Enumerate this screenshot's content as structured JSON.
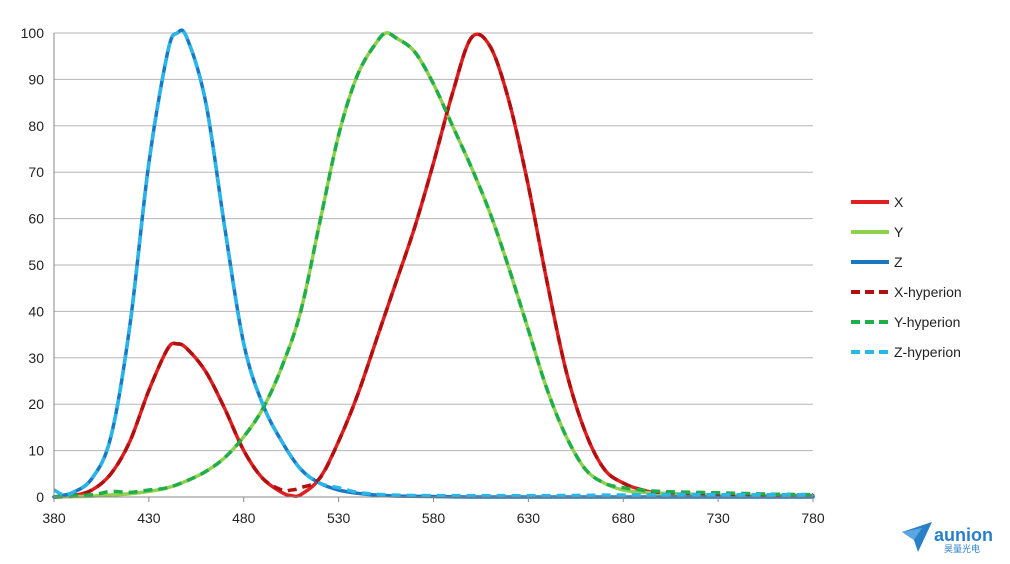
{
  "chart_data": {
    "type": "line",
    "xlim": [
      380,
      780
    ],
    "ylim": [
      0,
      100
    ],
    "x_ticks": [
      380,
      430,
      480,
      530,
      580,
      630,
      680,
      730,
      780
    ],
    "y_ticks": [
      0,
      10,
      20,
      30,
      40,
      50,
      60,
      70,
      80,
      90,
      100
    ],
    "grid": "horizontal",
    "legend_position": "right",
    "series": [
      {
        "name": "X",
        "style": "solid",
        "color": "#e02020",
        "x": [
          380,
          390,
          400,
          410,
          420,
          430,
          440,
          445,
          450,
          460,
          470,
          480,
          490,
          500,
          505,
          510,
          520,
          530,
          540,
          550,
          560,
          570,
          580,
          590,
          600,
          610,
          620,
          630,
          640,
          650,
          660,
          670,
          680,
          690,
          700,
          720,
          740,
          760,
          780
        ],
        "y": [
          0,
          0.3,
          1.5,
          5,
          12,
          23,
          32,
          33,
          32,
          27,
          19,
          10,
          4,
          1,
          0.3,
          0.5,
          4,
          12,
          22,
          34,
          46,
          58,
          72,
          87,
          99,
          97,
          85,
          67,
          46,
          27,
          14,
          6,
          3,
          1.5,
          0.8,
          0.5,
          0.3,
          0.3,
          0.3
        ]
      },
      {
        "name": "Y",
        "style": "solid",
        "color": "#8fd14f",
        "x": [
          380,
          400,
          420,
          430,
          440,
          450,
          460,
          470,
          480,
          490,
          500,
          510,
          520,
          530,
          540,
          550,
          555,
          560,
          570,
          580,
          590,
          600,
          610,
          620,
          630,
          640,
          650,
          660,
          670,
          680,
          690,
          700,
          720,
          740,
          760,
          780
        ],
        "y": [
          0,
          0.2,
          0.7,
          1.2,
          2,
          3.5,
          5.5,
          8.5,
          13,
          19,
          28,
          40,
          59,
          78,
          91,
          98,
          100,
          99,
          96,
          89,
          80,
          71,
          61,
          49,
          36,
          23,
          13,
          6,
          3,
          1.5,
          1,
          0.8,
          0.5,
          0.3,
          0.2,
          0.1
        ]
      },
      {
        "name": "Z",
        "style": "solid",
        "color": "#1a78c2",
        "x": [
          380,
          390,
          400,
          410,
          420,
          430,
          440,
          445,
          450,
          460,
          470,
          480,
          490,
          500,
          510,
          520,
          530,
          540,
          550,
          560,
          580,
          600,
          640,
          700,
          780
        ],
        "y": [
          0,
          1,
          4,
          13,
          37,
          72,
          96,
          100,
          99,
          85,
          58,
          33,
          20,
          12,
          6,
          3,
          1.5,
          0.8,
          0.4,
          0.2,
          0.1,
          0,
          0,
          0,
          0
        ]
      },
      {
        "name": "X-hyperion",
        "style": "dashed",
        "color": "#b01010",
        "x": [
          380,
          390,
          400,
          410,
          420,
          430,
          440,
          445,
          450,
          460,
          470,
          480,
          490,
          500,
          505,
          510,
          520,
          530,
          540,
          550,
          560,
          570,
          580,
          590,
          600,
          610,
          620,
          630,
          640,
          650,
          660,
          670,
          680,
          690,
          700,
          720,
          740,
          760,
          780
        ],
        "y": [
          0,
          0.3,
          1.5,
          5,
          12,
          23,
          32,
          33,
          32,
          27,
          19,
          10,
          4,
          1.5,
          1.5,
          2,
          4,
          12,
          22,
          34,
          46,
          58,
          72,
          87,
          99,
          97,
          85,
          67,
          46,
          27,
          14,
          6,
          3,
          1.5,
          1,
          0.8,
          0.6,
          0.5,
          0.5
        ]
      },
      {
        "name": "Y-hyperion",
        "style": "dashed",
        "color": "#1fae4a",
        "x": [
          380,
          400,
          410,
          420,
          430,
          440,
          450,
          460,
          470,
          480,
          490,
          500,
          510,
          520,
          530,
          540,
          550,
          555,
          560,
          570,
          580,
          590,
          600,
          610,
          620,
          630,
          640,
          650,
          660,
          670,
          680,
          690,
          700,
          720,
          740,
          760,
          780
        ],
        "y": [
          0,
          0.5,
          1.2,
          1,
          1.5,
          2,
          3.5,
          5.5,
          8.5,
          13,
          19,
          28,
          40,
          59,
          78,
          91,
          98,
          100,
          99,
          96,
          89,
          80,
          71,
          61,
          49,
          36,
          23,
          13,
          6,
          3,
          2,
          1.5,
          1.2,
          1,
          0.8,
          0.6,
          0.5
        ]
      },
      {
        "name": "Z-hyperion",
        "style": "dashed",
        "color": "#29b6e8",
        "x": [
          380,
          385,
          390,
          400,
          410,
          420,
          430,
          440,
          445,
          450,
          460,
          470,
          480,
          490,
          500,
          510,
          520,
          530,
          540,
          550,
          560,
          580,
          600,
          640,
          700,
          740,
          780
        ],
        "y": [
          1.5,
          0.5,
          1,
          4,
          13,
          37,
          72,
          96,
          100,
          99,
          85,
          58,
          33,
          20,
          12,
          6,
          3,
          2,
          1,
          0.6,
          0.4,
          0.3,
          0.3,
          0.3,
          0.5,
          0.5,
          0.5
        ]
      }
    ]
  },
  "brand": {
    "name": "aunion",
    "subtitle": "昊量光电",
    "color": "#2a7fc9"
  }
}
